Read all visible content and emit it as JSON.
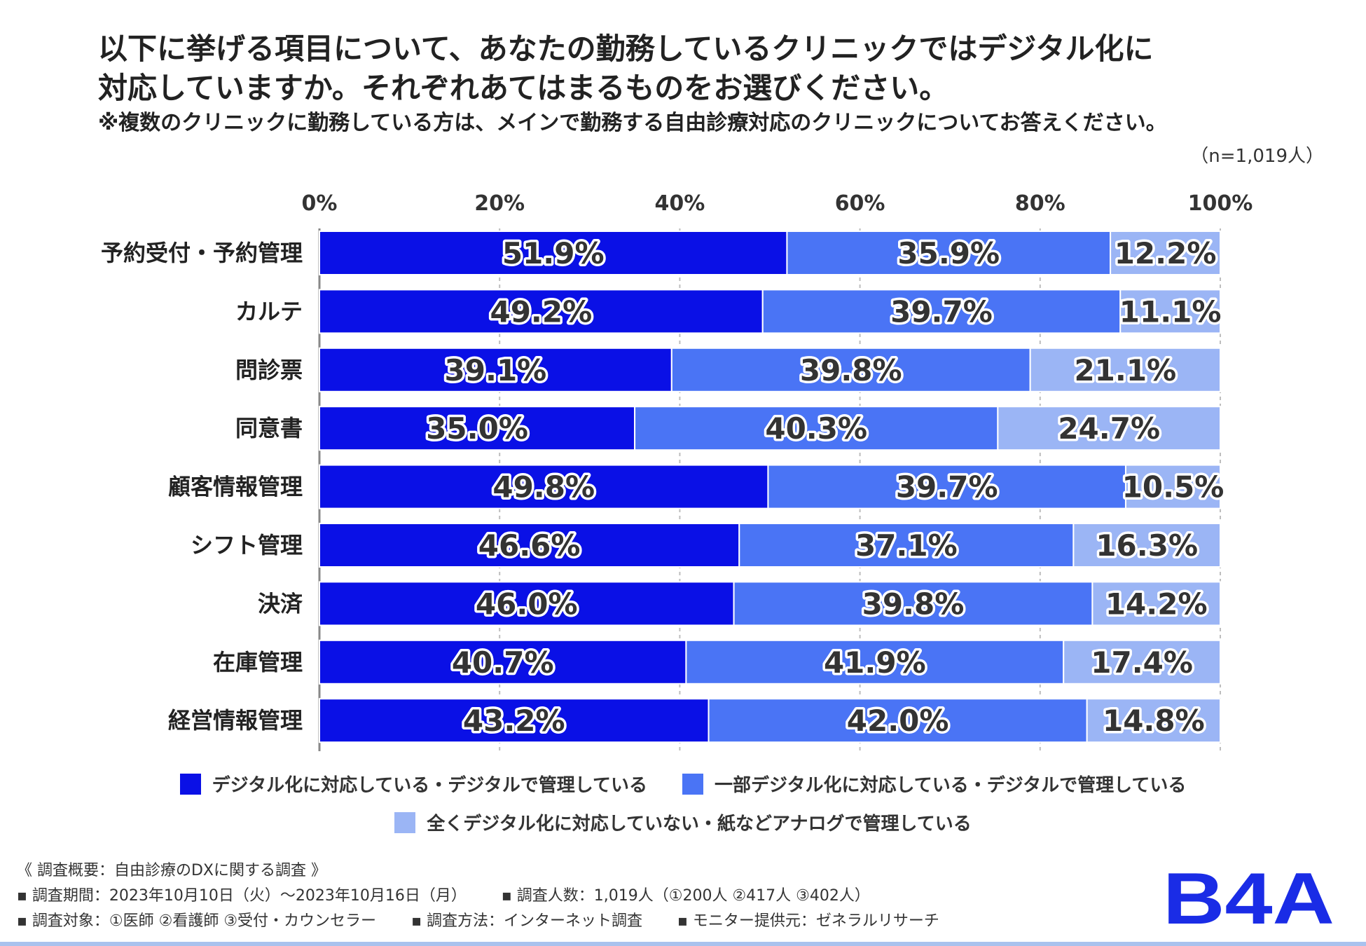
{
  "title_lines": [
    "以下に挙げる項目について、あなたの勤務しているクリニックではデジタル化に",
    "対応していますか。それぞれあてはまるものをお選びください。"
  ],
  "subtitle": "※複数のクリニックに勤務している方は、メインで勤務する自由診療対応のクリニックについてお答えください。",
  "n_note": "（n=1,019人）",
  "colors": {
    "s1": "#0a10e6",
    "s2": "#4a74f5",
    "s3": "#9bb5f5"
  },
  "chart_data": {
    "type": "bar",
    "orientation": "horizontal-stacked-100",
    "categories": [
      "予約受付・予約管理",
      "カルテ",
      "問診票",
      "同意書",
      "顧客情報管理",
      "シフト管理",
      "決済",
      "在庫管理",
      "経営情報管理"
    ],
    "series": [
      {
        "name": "デジタル化に対応している・デジタルで管理している",
        "values": [
          51.9,
          49.2,
          39.1,
          35.0,
          49.8,
          46.6,
          46.0,
          40.7,
          43.2
        ]
      },
      {
        "name": "一部デジタル化に対応している・デジタルで管理している",
        "values": [
          35.9,
          39.7,
          39.8,
          40.3,
          39.7,
          37.1,
          39.8,
          41.9,
          42.0
        ]
      },
      {
        "name": "全くデジタル化に対応していない・紙などアナログで管理している",
        "values": [
          12.2,
          11.1,
          21.1,
          24.7,
          10.5,
          16.3,
          14.2,
          17.4,
          14.8
        ]
      }
    ],
    "xticks": [
      "0%",
      "20%",
      "40%",
      "60%",
      "80%",
      "100%"
    ],
    "xlim": [
      0,
      100
    ],
    "legend_position": "bottom"
  },
  "legend": [
    [
      "デジタル化に対応している・デジタルで管理している",
      "一部デジタル化に対応している・デジタルで管理している"
    ],
    [
      "全くデジタル化に対応していない・紙などアナログで管理している"
    ]
  ],
  "footer": {
    "heading": "《 調査概要：自由診療のDXに関する調査 》",
    "period": "▪ 調査期間：2023年10月10日（火）～2023年10月16日（月）",
    "respondents": "▪ 調査人数：1,019人（①200人 ②417人 ③402人）",
    "target": "▪ 調査対象：①医師 ②看護師 ③受付・カウンセラー",
    "method": "▪ 調査方法：インターネット調査",
    "provider": "▪ モニター提供元：ゼネラルリサーチ"
  },
  "logo_text": "B4A"
}
